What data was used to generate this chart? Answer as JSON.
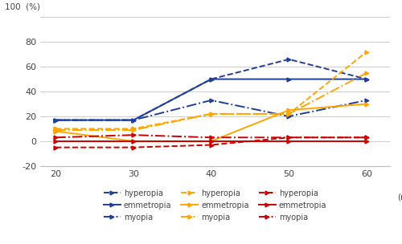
{
  "x": [
    20,
    30,
    40,
    50,
    60
  ],
  "blue_dash": [
    17,
    17,
    50,
    66,
    50
  ],
  "blue_solid": [
    17,
    17,
    50,
    50,
    50
  ],
  "blue_dashdot": [
    17,
    17,
    33,
    20,
    33
  ],
  "yellow_dash": [
    10,
    10,
    22,
    22,
    72
  ],
  "yellow_solid": [
    8,
    0,
    0,
    25,
    30
  ],
  "yellow_dashdot": [
    9,
    9,
    22,
    22,
    55
  ],
  "red_dash": [
    -5,
    -5,
    -3,
    3,
    3
  ],
  "red_solid": [
    0,
    0,
    0,
    0,
    0
  ],
  "red_dashdot": [
    3,
    5,
    3,
    3,
    3
  ],
  "ylim": [
    -20,
    100
  ],
  "xlim": [
    18,
    63
  ],
  "xticks": [
    20,
    30,
    40,
    50,
    60
  ],
  "yticks": [
    -20,
    0,
    20,
    40,
    60,
    80,
    100
  ],
  "blue_color": "#1F3F99",
  "yellow_color": "#FFA500",
  "red_color": "#CC0000",
  "lw": 1.4,
  "ms": 3.5
}
